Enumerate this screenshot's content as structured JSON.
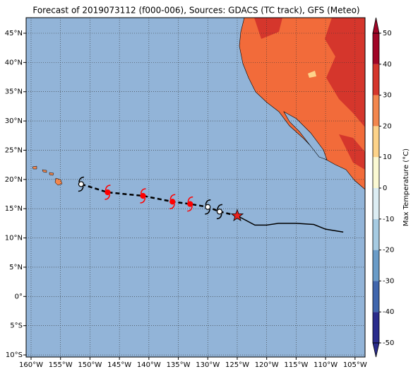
{
  "title": "Forecast of 2019073112 (f000-006), Sources: GDACS (TC track), GFS (Meteo)",
  "xlim": [
    -160.84,
    -103.3
  ],
  "ylim": [
    -10.36,
    47.66
  ],
  "lon_ticks": [
    {
      "value": -160,
      "label": "160°W"
    },
    {
      "value": -155,
      "label": "155°W"
    },
    {
      "value": -150,
      "label": "150°W"
    },
    {
      "value": -145,
      "label": "145°W"
    },
    {
      "value": -140,
      "label": "140°W"
    },
    {
      "value": -135,
      "label": "135°W"
    },
    {
      "value": -130,
      "label": "130°W"
    },
    {
      "value": -125,
      "label": "125°W"
    },
    {
      "value": -120,
      "label": "120°W"
    },
    {
      "value": -115,
      "label": "115°W"
    },
    {
      "value": -110,
      "label": "110°W"
    },
    {
      "value": -105,
      "label": "105°W"
    }
  ],
  "lat_ticks": [
    {
      "value": -10,
      "label": "10°S"
    },
    {
      "value": -5,
      "label": "5°S"
    },
    {
      "value": 0,
      "label": "0°"
    },
    {
      "value": 5,
      "label": "5°N"
    },
    {
      "value": 10,
      "label": "10°N"
    },
    {
      "value": 15,
      "label": "15°N"
    },
    {
      "value": 20,
      "label": "20°N"
    },
    {
      "value": 25,
      "label": "25°N"
    },
    {
      "value": 30,
      "label": "30°N"
    },
    {
      "value": 35,
      "label": "35°N"
    },
    {
      "value": 40,
      "label": "40°N"
    },
    {
      "value": 45,
      "label": "45°N"
    }
  ],
  "track": {
    "observed": {
      "lon": [
        -107,
        -110,
        -112,
        -115,
        -118,
        -120,
        -122,
        -125
      ],
      "lat": [
        11,
        11.5,
        12.3,
        12.5,
        12.5,
        12.2,
        12.2,
        13.8
      ]
    },
    "forecast": {
      "lon": [
        -125,
        -128,
        -130,
        -133,
        -136,
        -141,
        -147,
        -151.5
      ],
      "lat": [
        13.8,
        14.5,
        15.3,
        15.8,
        16.2,
        17.2,
        17.8,
        19.2
      ]
    },
    "current_position": {
      "lon": -125,
      "lat": 13.8,
      "color": "#e8231f"
    },
    "storm_icons": [
      {
        "lon": -128,
        "lat": 14.5,
        "color": "#ffffff"
      },
      {
        "lon": -130,
        "lat": 15.3,
        "color": "#ffffff"
      },
      {
        "lon": -133,
        "lat": 15.8,
        "color": "#ff0000"
      },
      {
        "lon": -136,
        "lat": 16.2,
        "color": "#ff0000"
      },
      {
        "lon": -141,
        "lat": 17.2,
        "color": "#ff0000"
      },
      {
        "lon": -147,
        "lat": 17.8,
        "color": "#ff0000"
      },
      {
        "lon": -151.5,
        "lat": 19.2,
        "color": "#ffffff"
      }
    ]
  },
  "colorbar": {
    "label": "Max Temperature (°C)",
    "lim": [
      -50,
      50
    ],
    "ticks": [
      -50,
      -40,
      -30,
      -20,
      -10,
      0,
      10,
      20,
      30,
      40,
      50
    ],
    "colors": [
      "#2a2c8c",
      "#4066ad",
      "#6a9cc8",
      "#a6cbe2",
      "#dcedf3",
      "#fbf9d3",
      "#fdd38a",
      "#f3874e",
      "#d5362c",
      "#a10526"
    ]
  }
}
